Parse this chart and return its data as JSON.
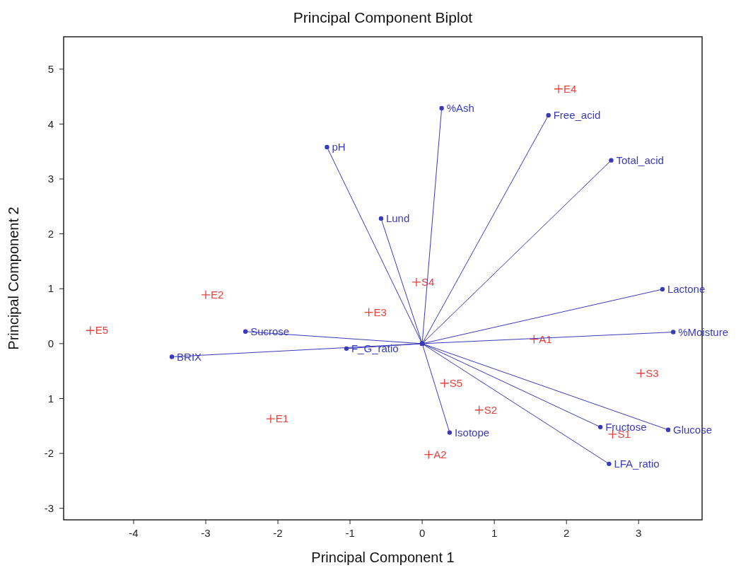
{
  "chart_data": {
    "type": "scatter",
    "title": "Principal Component Biplot",
    "xlabel": "Principal Component 1",
    "ylabel": "Principal Component 2",
    "xlim": [
      -4.97,
      3.88
    ],
    "ylim": [
      -3.21,
      5.59
    ],
    "xticks": [
      -4,
      -3,
      -2,
      -1,
      0,
      1,
      2,
      3
    ],
    "yticks": [
      -3,
      -2,
      {
        "value": -1,
        "label": "1"
      },
      0,
      1,
      2,
      3,
      4,
      5
    ],
    "grid": false,
    "series": [
      {
        "name": "E4",
        "color": "#e8403c",
        "marker": "cross",
        "x": [
          1.89
        ],
        "values": [
          4.64
        ]
      },
      {
        "name": "E2",
        "color": "#e8403c",
        "marker": "cross",
        "x": [
          -3.0
        ],
        "values": [
          0.89
        ]
      },
      {
        "name": "E5",
        "color": "#e8403c",
        "marker": "cross",
        "x": [
          -4.6
        ],
        "values": [
          0.24
        ]
      },
      {
        "name": "E3",
        "color": "#e8403c",
        "marker": "cross",
        "x": [
          -0.74
        ],
        "values": [
          0.57
        ]
      },
      {
        "name": "S4",
        "color": "#e8403c",
        "marker": "cross",
        "x": [
          -0.08
        ],
        "values": [
          1.12
        ]
      },
      {
        "name": "A1",
        "color": "#e8403c",
        "marker": "cross",
        "x": [
          1.55
        ],
        "values": [
          0.08
        ]
      },
      {
        "name": "S3",
        "color": "#e8403c",
        "marker": "cross",
        "x": [
          3.03
        ],
        "values": [
          -0.54
        ]
      },
      {
        "name": "S5",
        "color": "#e8403c",
        "marker": "cross",
        "x": [
          0.31
        ],
        "values": [
          -0.72
        ]
      },
      {
        "name": "S2",
        "color": "#e8403c",
        "marker": "cross",
        "x": [
          0.79
        ],
        "values": [
          -1.21
        ]
      },
      {
        "name": "E1",
        "color": "#e8403c",
        "marker": "cross",
        "x": [
          -2.1
        ],
        "values": [
          -1.37
        ]
      },
      {
        "name": "A2",
        "color": "#e8403c",
        "marker": "cross",
        "x": [
          0.09
        ],
        "values": [
          -2.02
        ]
      },
      {
        "name": "S1",
        "color": "#e8403c",
        "marker": "cross",
        "x": [
          2.64
        ],
        "values": [
          -1.65
        ]
      },
      {
        "type": "line",
        "name": "%Ash",
        "color": "#3a3ab8",
        "marker": "circle",
        "x": [
          0,
          0.27
        ],
        "values": [
          0,
          4.29
        ]
      },
      {
        "type": "line",
        "name": "Free_acid",
        "color": "#3a3ab8",
        "marker": "circle",
        "x": [
          0,
          1.75
        ],
        "values": [
          0,
          4.16
        ]
      },
      {
        "type": "line",
        "name": "pH",
        "color": "#3a3ab8",
        "marker": "circle",
        "x": [
          0,
          -1.32
        ],
        "values": [
          0,
          3.58
        ]
      },
      {
        "type": "line",
        "name": "Total_acid",
        "color": "#3a3ab8",
        "marker": "circle",
        "x": [
          0,
          2.62
        ],
        "values": [
          0,
          3.34
        ]
      },
      {
        "type": "line",
        "name": "Lund",
        "color": "#3a3ab8",
        "marker": "circle",
        "x": [
          0,
          -0.57
        ],
        "values": [
          0,
          2.28
        ]
      },
      {
        "type": "line",
        "name": "Lactone",
        "color": "#3a3ab8",
        "marker": "circle",
        "x": [
          0,
          3.33
        ],
        "values": [
          0,
          0.99
        ]
      },
      {
        "type": "line",
        "name": "Sucrose",
        "color": "#3a3ab8",
        "marker": "circle",
        "x": [
          0,
          -2.45
        ],
        "values": [
          0,
          0.22
        ]
      },
      {
        "type": "line",
        "name": "%Moisture",
        "color": "#3a3ab8",
        "marker": "circle",
        "x": [
          0,
          3.48
        ],
        "values": [
          0,
          0.21
        ]
      },
      {
        "type": "line",
        "name": "BRIX",
        "color": "#3a3ab8",
        "marker": "circle",
        "x": [
          0,
          -3.47
        ],
        "values": [
          0,
          -0.24
        ]
      },
      {
        "type": "line",
        "name": "F_G_ratio",
        "color": "#3a3ab8",
        "marker": "circle",
        "x": [
          0,
          -1.05
        ],
        "values": [
          0,
          -0.09
        ]
      },
      {
        "type": "line",
        "name": "Fructose",
        "color": "#3a3ab8",
        "marker": "circle",
        "x": [
          0,
          2.47
        ],
        "values": [
          0,
          -1.52
        ]
      },
      {
        "type": "line",
        "name": "Glucose",
        "color": "#3a3ab8",
        "marker": "circle",
        "x": [
          0,
          3.41
        ],
        "values": [
          0,
          -1.57
        ]
      },
      {
        "type": "line",
        "name": "Isotope",
        "color": "#3a3ab8",
        "marker": "circle",
        "x": [
          0,
          0.38
        ],
        "values": [
          0,
          -1.62
        ]
      },
      {
        "type": "line",
        "name": "LFA_ratio",
        "color": "#3a3ab8",
        "marker": "circle",
        "x": [
          0,
          2.59
        ],
        "values": [
          0,
          -2.19
        ]
      }
    ]
  }
}
